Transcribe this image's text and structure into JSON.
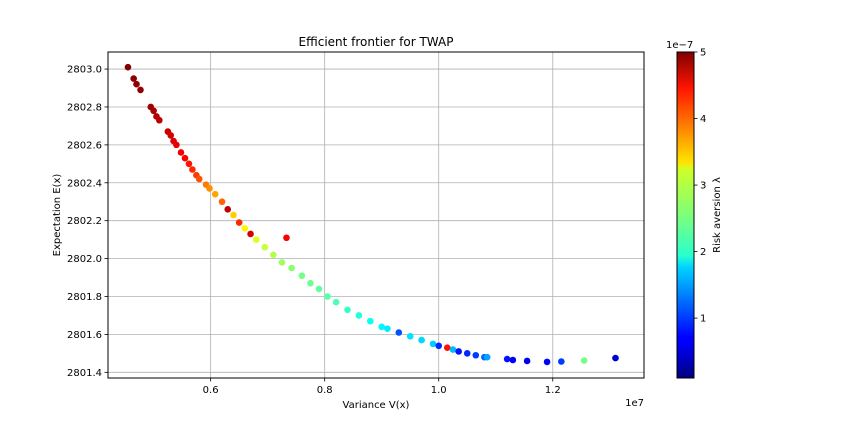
{
  "chart_data": {
    "type": "scatter",
    "title": "Efficient frontier for TWAP",
    "xlabel": "Variance V(x)",
    "ylabel": "Expectation E(x)",
    "x_offset_label": "1e7",
    "x_ticks": [
      {
        "value": 6000000,
        "label": "0.6"
      },
      {
        "value": 8000000,
        "label": "0.8"
      },
      {
        "value": 10000000,
        "label": "1.0"
      },
      {
        "value": 12000000,
        "label": "1.2"
      }
    ],
    "y_ticks": [
      {
        "value": 2801.4,
        "label": "2801.4"
      },
      {
        "value": 2801.6,
        "label": "2801.6"
      },
      {
        "value": 2801.8,
        "label": "2801.8"
      },
      {
        "value": 2802.0,
        "label": "2802.0"
      },
      {
        "value": 2802.2,
        "label": "2802.2"
      },
      {
        "value": 2802.4,
        "label": "2802.4"
      },
      {
        "value": 2802.6,
        "label": "2802.6"
      },
      {
        "value": 2802.8,
        "label": "2802.8"
      },
      {
        "value": 2803.0,
        "label": "2803.0"
      }
    ],
    "xlim": [
      4200000,
      13600000
    ],
    "ylim": [
      2801.37,
      2803.09
    ],
    "grid": true,
    "colorbar": {
      "label": "Risk aversion λ",
      "offset_label": "1e−7",
      "colormap": "jet",
      "range": [
        1e-08,
        5e-07
      ],
      "ticks": [
        {
          "value": 1e-07,
          "label": "1"
        },
        {
          "value": 2e-07,
          "label": "2"
        },
        {
          "value": 3e-07,
          "label": "3"
        },
        {
          "value": 4e-07,
          "label": "4"
        },
        {
          "value": 5e-07,
          "label": "5"
        }
      ]
    },
    "points": [
      [
        4550000,
        2803.01,
        5e-07
      ],
      [
        4650000,
        2802.95,
        4.95e-07
      ],
      [
        4700000,
        2802.92,
        4.92e-07
      ],
      [
        4770000,
        2802.89,
        4.9e-07
      ],
      [
        4950000,
        2802.8,
        4.85e-07
      ],
      [
        5000000,
        2802.78,
        4.8e-07
      ],
      [
        5050000,
        2802.75,
        4.75e-07
      ],
      [
        5100000,
        2802.73,
        4.72e-07
      ],
      [
        5250000,
        2802.67,
        4.65e-07
      ],
      [
        5300000,
        2802.65,
        4.6e-07
      ],
      [
        5350000,
        2802.62,
        4.55e-07
      ],
      [
        5400000,
        2802.6,
        4.5e-07
      ],
      [
        5480000,
        2802.56,
        4.45e-07
      ],
      [
        5550000,
        2802.53,
        4.4e-07
      ],
      [
        5620000,
        2802.5,
        4.3e-07
      ],
      [
        5680000,
        2802.47,
        4.2e-07
      ],
      [
        5750000,
        2802.44,
        4.1e-07
      ],
      [
        5800000,
        2802.42,
        4e-07
      ],
      [
        5920000,
        2802.39,
        3.8e-07
      ],
      [
        5980000,
        2802.37,
        3.7e-07
      ],
      [
        6080000,
        2802.34,
        3.6e-07
      ],
      [
        6200000,
        2802.3,
        3.9e-07
      ],
      [
        6300000,
        2802.26,
        4.7e-07
      ],
      [
        6400000,
        2802.23,
        3.4e-07
      ],
      [
        6500000,
        2802.19,
        4.2e-07
      ],
      [
        6600000,
        2802.16,
        3.2e-07
      ],
      [
        6700000,
        2802.13,
        4.6e-07
      ],
      [
        6800000,
        2802.1,
        3e-07
      ],
      [
        6950000,
        2802.06,
        2.9e-07
      ],
      [
        7100000,
        2802.02,
        2.8e-07
      ],
      [
        7250000,
        2801.98,
        2.7e-07
      ],
      [
        7330000,
        2802.11,
        4.4e-07
      ],
      [
        7420000,
        2801.95,
        2.6e-07
      ],
      [
        7600000,
        2801.91,
        2.5e-07
      ],
      [
        7750000,
        2801.87,
        2.45e-07
      ],
      [
        7900000,
        2801.84,
        2.4e-07
      ],
      [
        8050000,
        2801.8,
        2.35e-07
      ],
      [
        8200000,
        2801.77,
        2.3e-07
      ],
      [
        8400000,
        2801.73,
        2.2e-07
      ],
      [
        8600000,
        2801.7,
        2.1e-07
      ],
      [
        8800000,
        2801.67,
        2e-07
      ],
      [
        9000000,
        2801.64,
        1.9e-07
      ],
      [
        9100000,
        2801.63,
        1.85e-07
      ],
      [
        9300000,
        2801.61,
        1.1e-07
      ],
      [
        9500000,
        2801.59,
        1.8e-07
      ],
      [
        9700000,
        2801.57,
        1.75e-07
      ],
      [
        9900000,
        2801.55,
        1.7e-07
      ],
      [
        10000000,
        2801.54,
        9e-08
      ],
      [
        10150000,
        2801.53,
        4.3e-07
      ],
      [
        10250000,
        2801.52,
        1.6e-07
      ],
      [
        10350000,
        2801.51,
        8e-08
      ],
      [
        10500000,
        2801.5,
        9e-08
      ],
      [
        10650000,
        2801.49,
        1e-07
      ],
      [
        10800000,
        2801.48,
        1.2e-07
      ],
      [
        10850000,
        2801.48,
        1.5e-07
      ],
      [
        11200000,
        2801.47,
        8e-08
      ],
      [
        11300000,
        2801.465,
        7e-08
      ],
      [
        11550000,
        2801.46,
        6e-08
      ],
      [
        11900000,
        2801.455,
        7e-08
      ],
      [
        12150000,
        2801.457,
        1e-07
      ],
      [
        12550000,
        2801.462,
        2.5e-07
      ],
      [
        13100000,
        2801.475,
        5e-08
      ]
    ]
  }
}
